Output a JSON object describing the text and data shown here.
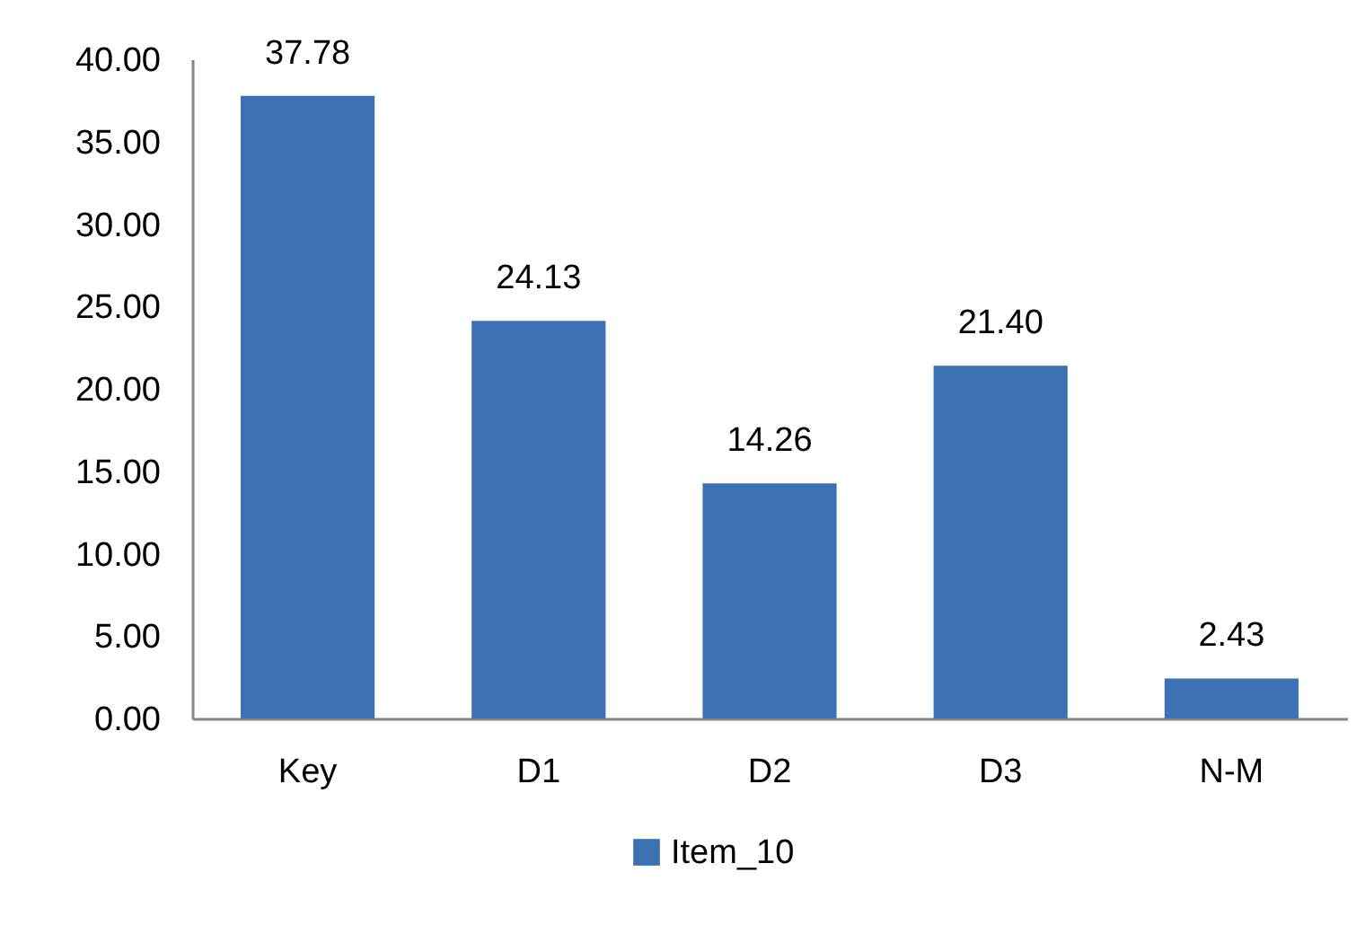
{
  "chart_data": {
    "type": "bar",
    "categories": [
      "Key",
      "D1",
      "D2",
      "D3",
      "N-M"
    ],
    "series": [
      {
        "name": "Item_10",
        "color": "#3c71b3",
        "values": [
          37.78,
          24.13,
          14.26,
          21.4,
          2.43
        ],
        "value_labels": [
          "37.78",
          "24.13",
          "14.26",
          "21.40",
          "2.43"
        ]
      }
    ],
    "ylim": [
      0,
      40
    ],
    "yticks": [
      {
        "value": 0,
        "label": "0.00"
      },
      {
        "value": 5,
        "label": "5.00"
      },
      {
        "value": 10,
        "label": "10.00"
      },
      {
        "value": 15,
        "label": "15.00"
      },
      {
        "value": 20,
        "label": "20.00"
      },
      {
        "value": 25,
        "label": "25.00"
      },
      {
        "value": 30,
        "label": "30.00"
      },
      {
        "value": 35,
        "label": "35.00"
      },
      {
        "value": 40,
        "label": "40.00"
      }
    ],
    "legend": "bottom"
  }
}
